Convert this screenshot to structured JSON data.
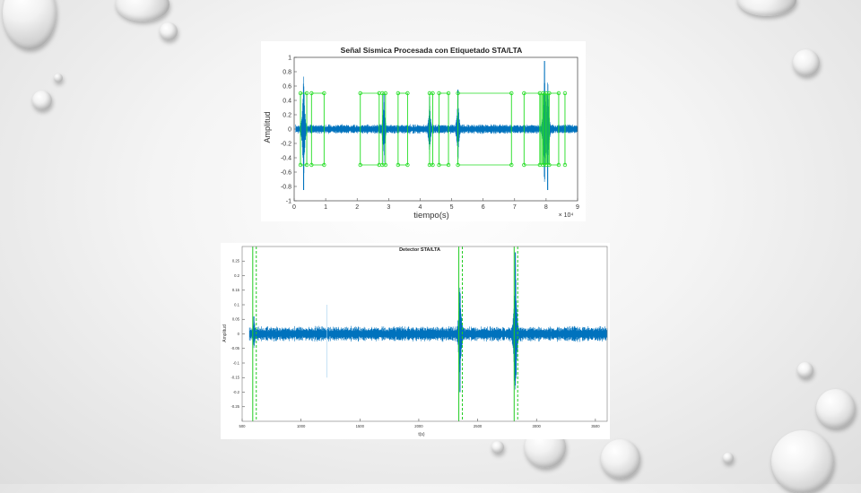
{
  "slide": {
    "accent_color": "#1f77b4",
    "marker_color": "#22dd22"
  },
  "chart_data": [
    {
      "type": "line",
      "title": "Señal Sísmica Procesada con Etiquetado STA/LTA",
      "xlabel": "tiempo(s)",
      "ylabel": "Amplitud",
      "x_multiplier_label": "× 10⁴",
      "xlim": [
        0,
        9
      ],
      "ylim": [
        -1,
        1
      ],
      "xticks": [
        "0",
        "1",
        "2",
        "3",
        "4",
        "5",
        "6",
        "7",
        "8",
        "9"
      ],
      "yticks": [
        "-1",
        "-0.8",
        "-0.6",
        "-0.4",
        "-0.2",
        "0",
        "0.2",
        "0.4",
        "0.6",
        "0.8",
        "1"
      ],
      "grid": false,
      "series": [
        {
          "kind": "waveform",
          "color": "#0072bd",
          "noise_amplitude": 0.05,
          "events": [
            {
              "x": 0.3,
              "peak": 0.85,
              "sign": -1
            },
            {
              "x": 2.85,
              "peak": 0.5,
              "sign": 1
            },
            {
              "x": 4.3,
              "peak": 0.45,
              "sign": 1
            },
            {
              "x": 5.2,
              "peak": 0.55,
              "sign": 1
            },
            {
              "x": 7.95,
              "peak": 0.95,
              "sign": 1
            },
            {
              "x": 8.05,
              "peak": 0.85,
              "sign": -1
            }
          ]
        },
        {
          "kind": "detections",
          "color": "#22dd22",
          "level": 0.5,
          "x": [
            0.2,
            0.4,
            0.55,
            0.95,
            2.1,
            2.7,
            2.8,
            2.9,
            3.3,
            3.6,
            4.3,
            4.4,
            4.6,
            4.9,
            5.2,
            6.9,
            7.3,
            7.8,
            7.9,
            8.0,
            8.1,
            8.4,
            8.6
          ]
        },
        {
          "kind": "emphasized_zone",
          "color": "#22dd22",
          "x_range": [
            7.8,
            8.1
          ]
        }
      ]
    },
    {
      "type": "line",
      "title": "Detector STA/LTA",
      "xlabel": "t(s)",
      "ylabel": "Amplitud",
      "xlim": [
        500,
        3600
      ],
      "ylim": [
        -0.3,
        0.3
      ],
      "xticks": [
        "500",
        "1000",
        "1500",
        "2000",
        "2500",
        "3000",
        "3500"
      ],
      "yticks": [
        "0.25",
        "0.2",
        "0.15",
        "0.1",
        "0.05",
        "0",
        "-0.05",
        "-0.1",
        "-0.15",
        "-0.2",
        "-0.25"
      ],
      "grid": false,
      "series": [
        {
          "kind": "waveform",
          "color": "#0072bd",
          "noise_amplitude": 0.02,
          "events": [
            {
              "x": 600,
              "peak": 0.06,
              "sign": 1
            },
            {
              "x": 2350,
              "peak": 0.2,
              "sign": -1
            },
            {
              "x": 2820,
              "peak": 0.28,
              "sign": 1
            }
          ]
        },
        {
          "kind": "thin_line",
          "color": "#9fd0ef",
          "x": 1220,
          "y_range": [
            -0.15,
            0.1
          ]
        },
        {
          "kind": "trigger_on",
          "color": "#22cc22",
          "x": [
            590,
            2340,
            2810
          ]
        },
        {
          "kind": "trigger_off",
          "color": "#22cc22",
          "x": [
            620,
            2370,
            2840
          ]
        }
      ]
    }
  ]
}
